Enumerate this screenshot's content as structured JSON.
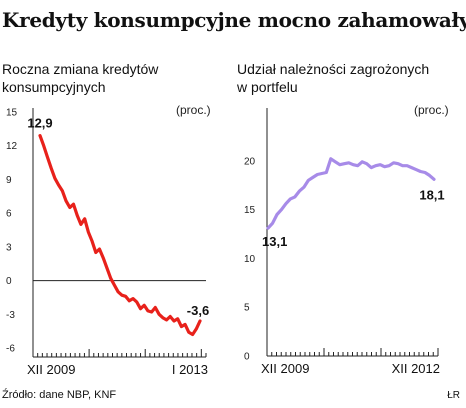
{
  "title": "Kredyty konsumpcyjne mocno zahamowały",
  "source": "Źródło: dane NBP, KNF",
  "mark": "ŁR",
  "chart_data": [
    {
      "type": "line",
      "title": "Roczna zmiana kredytów konsumpcyjnych",
      "unit": "(proc.)",
      "color": "#e8211b",
      "ylim": [
        -6,
        15
      ],
      "yticks": [
        15,
        12,
        9,
        6,
        3,
        0,
        -3,
        -6
      ],
      "xlabels": [
        "XII 2009",
        "I 2013"
      ],
      "grid": false,
      "zero_line": true,
      "series": [
        {
          "values": [
            12.9,
            12.0,
            11.0,
            10.0,
            9.1,
            8.5,
            8.0,
            7.1,
            6.5,
            6.8,
            5.8,
            5.0,
            5.5,
            4.3,
            3.5,
            2.5,
            2.8,
            2.0,
            1.1,
            0.2,
            -0.4,
            -1.0,
            -1.3,
            -1.4,
            -1.8,
            -1.6,
            -1.9,
            -2.5,
            -2.2,
            -2.7,
            -2.8,
            -2.4,
            -3.0,
            -3.3,
            -3.5,
            -3.2,
            -3.6,
            -3.4,
            -4.1,
            -3.9,
            -4.6,
            -4.8,
            -4.3,
            -3.6
          ]
        }
      ],
      "data_labels": [
        {
          "index": 0,
          "text": "12,9"
        },
        {
          "index": 43,
          "text": "-3,6"
        }
      ]
    },
    {
      "type": "line",
      "title": "Udział należności zagrożonych w portfelu",
      "unit": "(proc.)",
      "color": "#a78be8",
      "ylim": [
        0,
        25
      ],
      "yticks": [
        0,
        5,
        10,
        15,
        20
      ],
      "xlabels": [
        "XII 2009",
        "XII 2012"
      ],
      "grid": false,
      "series": [
        {
          "values": [
            13.1,
            13.6,
            14.5,
            15.0,
            15.6,
            16.1,
            16.3,
            16.9,
            17.3,
            18.0,
            18.3,
            18.6,
            18.7,
            18.8,
            20.2,
            19.9,
            19.6,
            19.7,
            19.8,
            19.6,
            19.5,
            19.9,
            19.7,
            19.3,
            19.5,
            19.6,
            19.4,
            19.5,
            19.8,
            19.7,
            19.5,
            19.5,
            19.3,
            19.1,
            18.9,
            18.8,
            18.5,
            18.1
          ]
        }
      ],
      "data_labels": [
        {
          "index": 0,
          "text": "13,1"
        },
        {
          "index": 37,
          "text": "18,1"
        }
      ]
    }
  ]
}
